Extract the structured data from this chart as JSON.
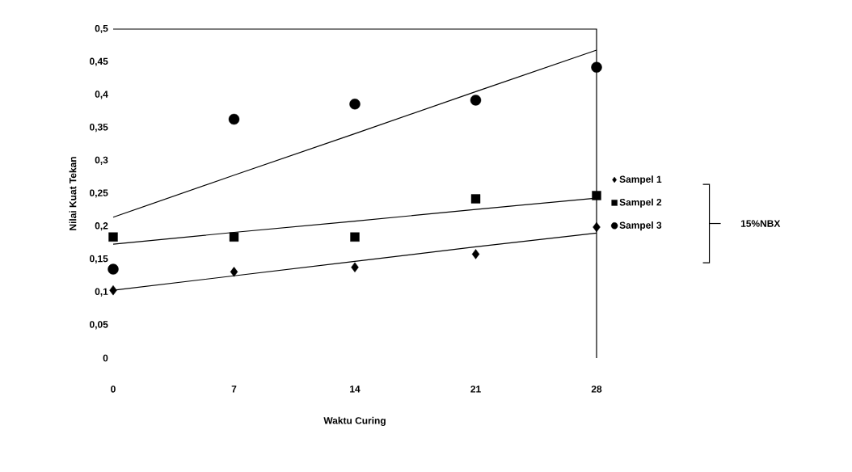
{
  "chart_data": {
    "type": "scatter",
    "xlabel": "Waktu Curing",
    "ylabel": "Nilai Kuat Tekan",
    "legend_title": "15%NBX",
    "xlim": [
      0,
      28
    ],
    "ylim": [
      0,
      0.5
    ],
    "xticks": [
      0,
      7,
      14,
      21,
      28
    ],
    "yticks": [
      0,
      {
        "value": 0.05,
        "label": "0,05"
      },
      {
        "value": 0.1,
        "label": "0,1"
      },
      {
        "value": 0.15,
        "label": "0,15"
      },
      {
        "value": 0.2,
        "label": "0,2"
      },
      {
        "value": 0.25,
        "label": "0,25"
      },
      {
        "value": 0.3,
        "label": "0,3"
      },
      {
        "value": 0.35,
        "label": "0,35"
      },
      {
        "value": 0.4,
        "label": "0,4"
      },
      {
        "value": 0.45,
        "label": "0,45"
      },
      {
        "value": 0.5,
        "label": "0,5"
      }
    ],
    "x": [
      0,
      7,
      14,
      21,
      28
    ],
    "legend": "right",
    "grid": false,
    "series": [
      {
        "name": "Sampel 1",
        "color": "#000000",
        "marker": "diamond",
        "values": [
          0.103,
          0.131,
          0.138,
          0.158,
          0.199
        ]
      },
      {
        "name": "Sampel 2",
        "color": "#000000",
        "marker": "square",
        "values": [
          0.184,
          0.184,
          0.184,
          0.242,
          0.247
        ]
      },
      {
        "name": "Sampel 3",
        "color": "#000000",
        "marker": "circle",
        "values": [
          0.135,
          0.363,
          0.386,
          0.392,
          0.442
        ]
      },
      {
        "type": "line",
        "color": "#000000",
        "marker": "none",
        "values": [
          0.103,
          0.125,
          0.147,
          0.169,
          0.19
        ]
      },
      {
        "type": "line",
        "color": "#000000",
        "marker": "none",
        "values": [
          0.173,
          0.191,
          0.208,
          0.226,
          0.243
        ]
      },
      {
        "type": "line",
        "color": "#000000",
        "marker": "none",
        "values": [
          0.214,
          0.278,
          0.341,
          0.405,
          0.468
        ]
      }
    ]
  }
}
